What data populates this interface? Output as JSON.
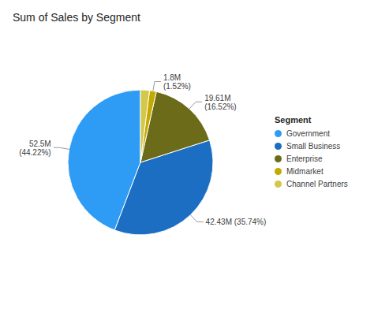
{
  "chart_data": {
    "type": "pie",
    "title": "Sum of Sales by Segment",
    "categories": [
      "Government",
      "Small Business",
      "Enterprise",
      "Midmarket",
      "Channel Partners"
    ],
    "values": [
      44.22,
      35.74,
      16.52,
      1.52,
      2.0
    ],
    "value_labels": [
      "52.5M\n(44.22%)",
      "42.43M (35.74%)",
      "19.61M\n(16.52%)",
      "1.8M\n(1.52%)",
      null
    ],
    "colors": [
      "#2E9BF5",
      "#1B6EC2",
      "#6B6B1A",
      "#C4A900",
      "#D4C84A"
    ],
    "legend_title": "Segment",
    "legend": "right",
    "data_labels": true
  }
}
